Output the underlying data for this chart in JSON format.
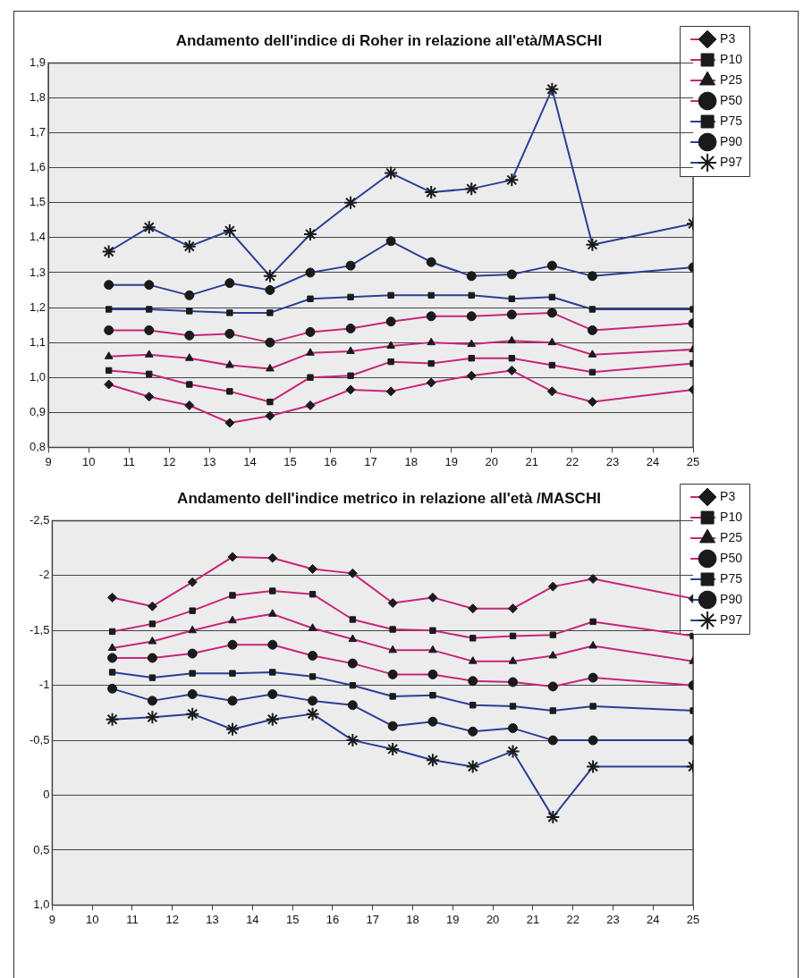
{
  "chart_data": [
    {
      "type": "line",
      "title": "Andamento dell'indice di Roher in relazione all'età/MASCHI",
      "x": [
        10.5,
        11.5,
        12.5,
        13.5,
        14.5,
        15.5,
        16.5,
        17.5,
        18.5,
        19.5,
        20.5,
        21.5,
        22.5,
        25
      ],
      "series": [
        {
          "name": "P3",
          "color": "#c8257a",
          "marker": "diamond",
          "values": [
            0.98,
            0.945,
            0.92,
            0.87,
            0.89,
            0.92,
            0.965,
            0.96,
            0.985,
            1.005,
            1.02,
            0.96,
            0.93,
            0.965
          ]
        },
        {
          "name": "P10",
          "color": "#c8257a",
          "marker": "square",
          "values": [
            1.02,
            1.01,
            0.98,
            0.96,
            0.93,
            1.0,
            1.005,
            1.045,
            1.04,
            1.055,
            1.055,
            1.035,
            1.015,
            1.04
          ]
        },
        {
          "name": "P25",
          "color": "#c8257a",
          "marker": "triangle",
          "values": [
            1.06,
            1.065,
            1.055,
            1.035,
            1.025,
            1.07,
            1.075,
            1.09,
            1.1,
            1.095,
            1.105,
            1.1,
            1.065,
            1.08
          ]
        },
        {
          "name": "P50",
          "color": "#c8257a",
          "marker": "circle",
          "values": [
            1.135,
            1.135,
            1.12,
            1.125,
            1.1,
            1.13,
            1.14,
            1.16,
            1.175,
            1.175,
            1.18,
            1.185,
            1.135,
            1.155
          ]
        },
        {
          "name": "P75",
          "color": "#2a3f93",
          "marker": "square",
          "values": [
            1.195,
            1.195,
            1.19,
            1.185,
            1.185,
            1.225,
            1.23,
            1.235,
            1.235,
            1.235,
            1.225,
            1.23,
            1.195,
            1.195
          ]
        },
        {
          "name": "P90",
          "color": "#2a3f93",
          "marker": "circle",
          "values": [
            1.265,
            1.265,
            1.235,
            1.27,
            1.25,
            1.3,
            1.32,
            1.39,
            1.33,
            1.29,
            1.295,
            1.32,
            1.29,
            1.315
          ]
        },
        {
          "name": "P97",
          "color": "#2a3f93",
          "marker": "cross",
          "values": [
            1.36,
            1.43,
            1.375,
            1.42,
            1.29,
            1.41,
            1.5,
            1.585,
            1.53,
            1.54,
            1.565,
            1.825,
            1.38,
            1.44
          ]
        }
      ],
      "xlim": [
        9,
        25
      ],
      "xticks": [
        9,
        10,
        11,
        12,
        13,
        14,
        15,
        16,
        17,
        18,
        19,
        20,
        21,
        22,
        23,
        24,
        25
      ],
      "ylim": [
        0.8,
        1.9
      ],
      "yticks": [
        {
          "value": 0.8,
          "label": "0,8"
        },
        {
          "value": 0.9,
          "label": "0,9"
        },
        {
          "value": 1.0,
          "label": "1,0"
        },
        {
          "value": 1.1,
          "label": "1,1"
        },
        {
          "value": 1.2,
          "label": "1,2"
        },
        {
          "value": 1.3,
          "label": "1,3"
        },
        {
          "value": 1.4,
          "label": "1,4"
        },
        {
          "value": 1.5,
          "label": "1,5"
        },
        {
          "value": 1.6,
          "label": "1,6"
        },
        {
          "value": 1.7,
          "label": "1,7"
        },
        {
          "value": 1.8,
          "label": "1,8"
        },
        {
          "value": 1.9,
          "label": "1,9"
        }
      ],
      "grid": "y",
      "legend": "top right",
      "line_style": "solid"
    },
    {
      "type": "line",
      "title": "Andamento dell'indice metrico in relazione all'età /MASCHI",
      "x": [
        10.5,
        11.5,
        12.5,
        13.5,
        14.5,
        15.5,
        16.5,
        17.5,
        18.5,
        19.5,
        20.5,
        21.5,
        22.5,
        25
      ],
      "series": [
        {
          "name": "P3",
          "color": "#c8257a",
          "marker": "diamond",
          "values": [
            -1.8,
            -1.72,
            -1.94,
            -2.17,
            -2.16,
            -2.06,
            -2.02,
            -1.75,
            -1.8,
            -1.7,
            -1.7,
            -1.9,
            -1.97,
            -1.79
          ]
        },
        {
          "name": "P10",
          "color": "#c8257a",
          "marker": "square",
          "values": [
            -1.49,
            -1.56,
            -1.68,
            -1.82,
            -1.86,
            -1.83,
            -1.6,
            -1.51,
            -1.5,
            -1.43,
            -1.45,
            -1.46,
            -1.58,
            -1.45
          ]
        },
        {
          "name": "P25",
          "color": "#c8257a",
          "marker": "triangle",
          "values": [
            -1.34,
            -1.4,
            -1.5,
            -1.59,
            -1.65,
            -1.52,
            -1.42,
            -1.32,
            -1.32,
            -1.22,
            -1.22,
            -1.27,
            -1.36,
            -1.22
          ]
        },
        {
          "name": "P50",
          "color": "#c8257a",
          "marker": "circle",
          "values": [
            -1.25,
            -1.25,
            -1.29,
            -1.37,
            -1.37,
            -1.27,
            -1.2,
            -1.1,
            -1.1,
            -1.04,
            -1.03,
            -0.99,
            -1.07,
            -1.0
          ]
        },
        {
          "name": "P75",
          "color": "#2a3f93",
          "marker": "square",
          "values": [
            -1.12,
            -1.07,
            -1.11,
            -1.11,
            -1.12,
            -1.08,
            -1.0,
            -0.9,
            -0.91,
            -0.82,
            -0.81,
            -0.77,
            -0.81,
            -0.77
          ]
        },
        {
          "name": "P90",
          "color": "#2a3f93",
          "marker": "circle",
          "values": [
            -0.97,
            -0.86,
            -0.92,
            -0.86,
            -0.92,
            -0.86,
            -0.82,
            -0.63,
            -0.67,
            -0.58,
            -0.61,
            -0.5,
            -0.5,
            -0.5
          ]
        },
        {
          "name": "P97",
          "color": "#2a3f93",
          "marker": "cross",
          "values": [
            -0.69,
            -0.71,
            -0.74,
            -0.6,
            -0.69,
            -0.74,
            -0.5,
            -0.42,
            -0.32,
            -0.26,
            -0.4,
            0.2,
            -0.26,
            -0.26
          ]
        }
      ],
      "xlim": [
        9,
        25
      ],
      "xticks": [
        9,
        10,
        11,
        12,
        13,
        14,
        15,
        16,
        17,
        18,
        19,
        20,
        21,
        22,
        23,
        24,
        25
      ],
      "ylim": [
        1.0,
        -2.5
      ],
      "yticks": [
        {
          "value": 1.0,
          "label": "1,0"
        },
        {
          "value": 0.5,
          "label": "0,5"
        },
        0,
        {
          "value": -0.5,
          "label": "-0,5"
        },
        -1,
        {
          "value": -1.5,
          "label": "-1,5"
        },
        -2,
        {
          "value": -2.5,
          "label": "-2,5"
        }
      ],
      "grid": "y",
      "legend": "top right",
      "line_style": "solid"
    }
  ]
}
